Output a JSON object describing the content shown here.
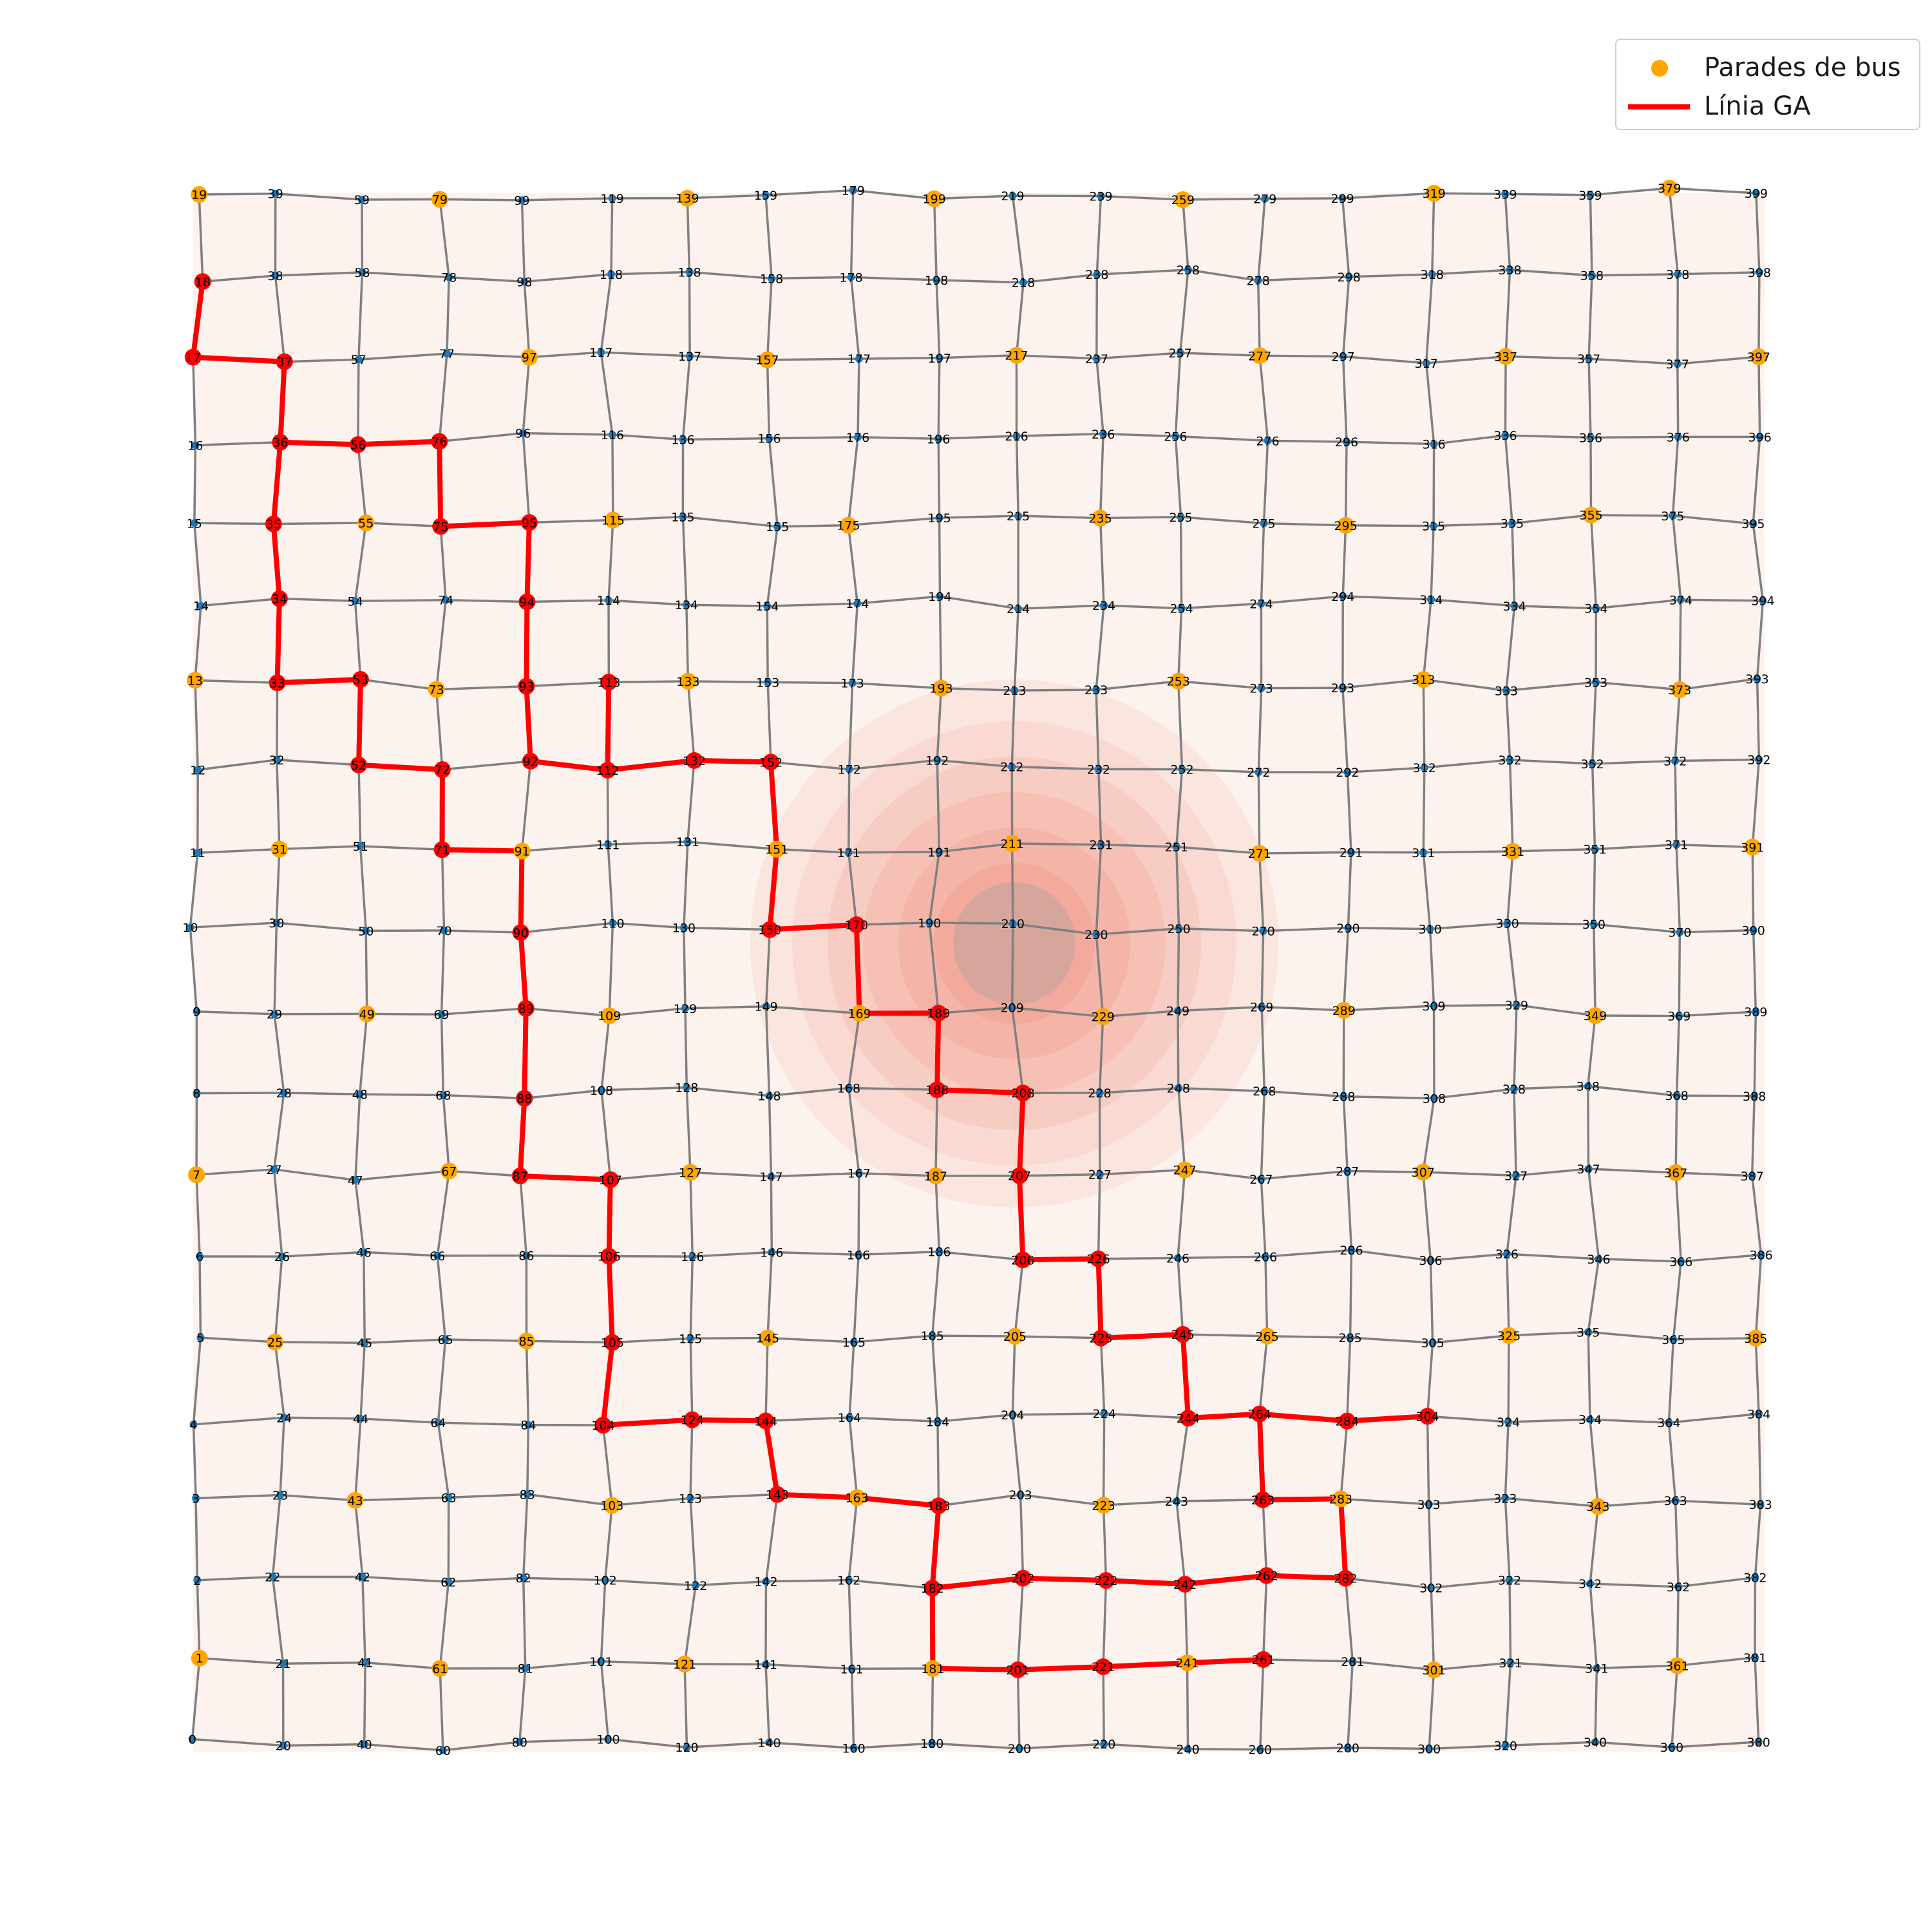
{
  "legend": {
    "stops_label": "Parades de bus",
    "route_label": "Línia GA",
    "stops_color": "#ffa500",
    "route_color": "#ff0000"
  },
  "colors": {
    "node": "#1f77b4",
    "edge": "#808080",
    "background": "#fdf3ee",
    "heat": "#f08070",
    "heat_core": "#a0a0a0",
    "route_stop": "#ff0000",
    "bus_stop": "#ffa500"
  },
  "grid": {
    "columns": 20,
    "rows": 20,
    "numbering": "node id = 20 × column + row, row 0 at bottom"
  },
  "bus_stops": [
    1,
    7,
    13,
    19,
    25,
    31,
    43,
    49,
    55,
    61,
    67,
    73,
    79,
    85,
    91,
    97,
    103,
    109,
    115,
    121,
    127,
    133,
    139,
    145,
    151,
    157,
    163,
    169,
    175,
    181,
    187,
    193,
    199,
    205,
    211,
    217,
    223,
    229,
    235,
    241,
    247,
    253,
    259,
    265,
    271,
    277,
    283,
    289,
    295,
    301,
    307,
    313,
    319,
    325,
    331,
    337,
    343,
    349,
    355,
    361,
    367,
    373,
    379,
    385,
    391,
    397
  ],
  "route": [
    18,
    17,
    37,
    36,
    56,
    76,
    75,
    95,
    94,
    93,
    92,
    112,
    113,
    112,
    132,
    152,
    151,
    150,
    170,
    169,
    189,
    188,
    208,
    207,
    206,
    226,
    225,
    245,
    244,
    264,
    284,
    304,
    284,
    264,
    263,
    283,
    282,
    262,
    242,
    222,
    202,
    182,
    183,
    163,
    143,
    144,
    124,
    104,
    105,
    106,
    107,
    87,
    88,
    89,
    90,
    91,
    71,
    72,
    52,
    53,
    33,
    34,
    35,
    36
  ],
  "route_branch_2": [
    182,
    181,
    201,
    221,
    241,
    261
  ]
}
